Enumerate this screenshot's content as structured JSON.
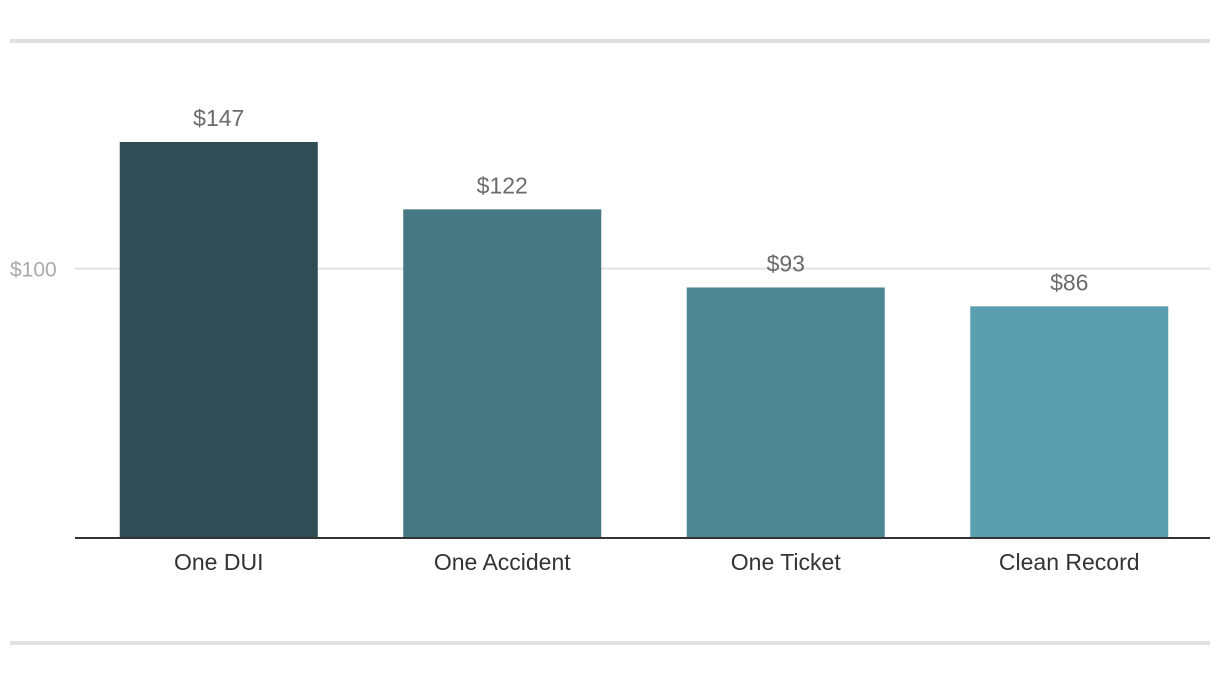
{
  "chart_data": {
    "type": "bar",
    "title": "",
    "xlabel": "",
    "ylabel": "",
    "categories": [
      "One DUI",
      "One Accident",
      "One Ticket",
      "Clean Record"
    ],
    "values": [
      147,
      122,
      93,
      86
    ],
    "value_labels": [
      "$147",
      "$122",
      "$93",
      "$86"
    ],
    "colors": [
      "#2f4d54",
      "#477782",
      "#4e8592",
      "#5b9eaf"
    ],
    "ylim": [
      0,
      147
    ],
    "yticks": [
      {
        "value": 100,
        "label": "$100"
      }
    ],
    "grid": true,
    "legend": "none"
  }
}
